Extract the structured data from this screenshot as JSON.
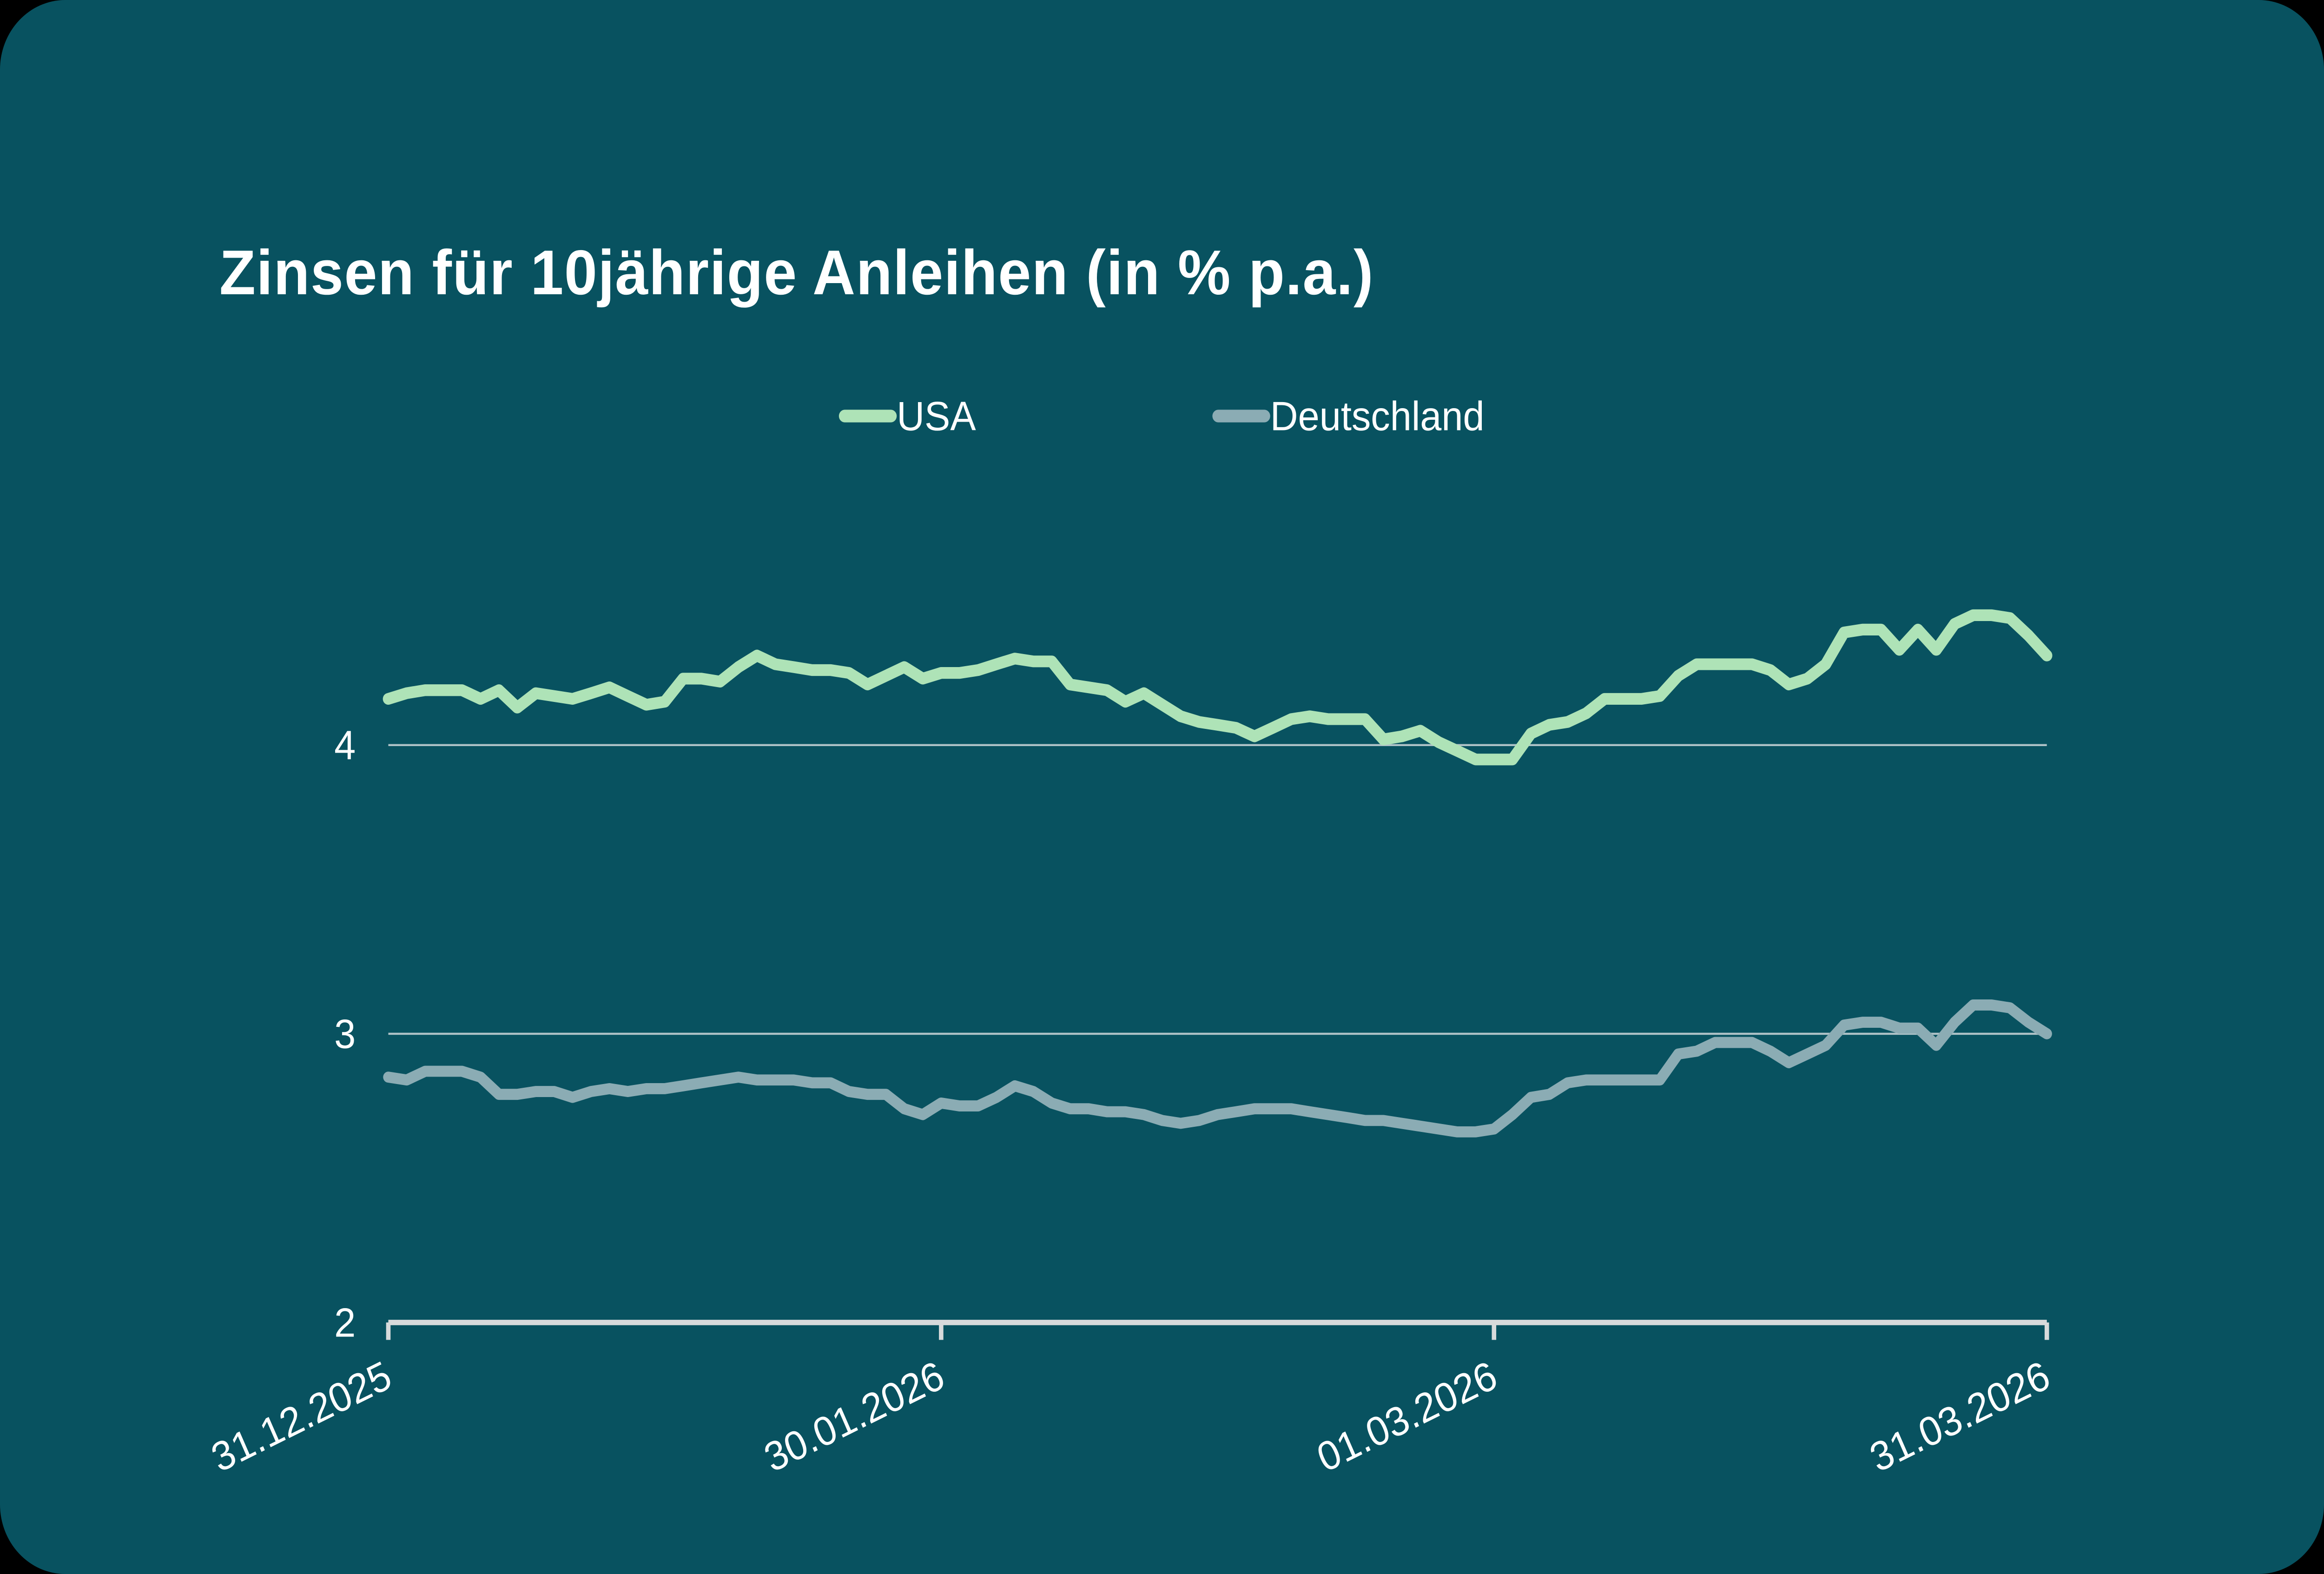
{
  "page": {
    "outer_background": "#000000",
    "panel_background": "#085260",
    "panel_corner_radius": "44",
    "text_color": "#FFFFFF",
    "gridline_color": "#CBD6D9",
    "axis_color": "#D7DADB"
  },
  "header": {
    "title": "Zinsen für 10jährige Anleihen (in % p.a.)"
  },
  "legend": {
    "0": {
      "label": "USA",
      "color": "#AEE3B7"
    },
    "1": {
      "label": "Deutschland",
      "color": "#8BACB4"
    }
  },
  "chart_data": {
    "type": "line",
    "title": "Zinsen für 10jährige Anleihen (in % p.a.)",
    "xlabel": "",
    "ylabel": "",
    "x_start_date": "31.12.2025",
    "x_end_date": "31.03.2026",
    "x_unit": "daily observations, day index 0 = 31.12.2025",
    "xlim_days": [
      0,
      90
    ],
    "ylim": [
      2,
      4.72
    ],
    "grid": "horizontal only",
    "legend_position": "top center",
    "xticks": [
      {
        "day": 0,
        "label": "31.12.2025"
      },
      {
        "day": 30,
        "label": "30.01.2026"
      },
      {
        "day": 60,
        "label": "01.03.2026"
      },
      {
        "day": 90,
        "label": "31.03.2026"
      }
    ],
    "yticks": [
      {
        "value": 2,
        "label": "2"
      },
      {
        "value": 3,
        "label": "3"
      },
      {
        "value": 4,
        "label": "4"
      }
    ],
    "series": [
      {
        "name": "USA",
        "color": "#AEE3B7",
        "stroke_width": 7.4,
        "values": [
          4.16,
          4.18,
          4.19,
          4.19,
          4.19,
          4.16,
          4.19,
          4.13,
          4.18,
          4.17,
          4.16,
          4.18,
          4.2,
          4.17,
          4.14,
          4.15,
          4.23,
          4.23,
          4.22,
          4.27,
          4.31,
          4.28,
          4.27,
          4.26,
          4.26,
          4.25,
          4.21,
          4.24,
          4.27,
          4.23,
          4.25,
          4.25,
          4.26,
          4.28,
          4.3,
          4.29,
          4.29,
          4.21,
          4.2,
          4.19,
          4.15,
          4.18,
          4.14,
          4.1,
          4.08,
          4.07,
          4.06,
          4.03,
          4.06,
          4.09,
          4.1,
          4.09,
          4.09,
          4.09,
          4.02,
          4.03,
          4.05,
          4.01,
          3.98,
          3.95,
          3.95,
          3.95,
          4.04,
          4.07,
          4.08,
          4.11,
          4.16,
          4.16,
          4.16,
          4.17,
          4.24,
          4.28,
          4.28,
          4.28,
          4.28,
          4.26,
          4.21,
          4.23,
          4.28,
          4.39,
          4.4,
          4.4,
          4.33,
          4.4,
          4.33,
          4.42,
          4.45,
          4.45,
          4.44,
          4.38,
          4.31
        ]
      },
      {
        "name": "Deutschland",
        "color": "#8BACB4",
        "stroke_width": 7.0,
        "values": [
          2.85,
          2.84,
          2.87,
          2.87,
          2.87,
          2.85,
          2.79,
          2.79,
          2.8,
          2.8,
          2.78,
          2.8,
          2.81,
          2.8,
          2.81,
          2.81,
          2.82,
          2.83,
          2.84,
          2.85,
          2.84,
          2.84,
          2.84,
          2.83,
          2.83,
          2.8,
          2.79,
          2.79,
          2.74,
          2.72,
          2.76,
          2.75,
          2.75,
          2.78,
          2.82,
          2.8,
          2.76,
          2.74,
          2.74,
          2.73,
          2.73,
          2.72,
          2.7,
          2.69,
          2.7,
          2.72,
          2.73,
          2.74,
          2.74,
          2.74,
          2.73,
          2.72,
          2.71,
          2.7,
          2.7,
          2.69,
          2.68,
          2.67,
          2.66,
          2.66,
          2.67,
          2.72,
          2.78,
          2.79,
          2.83,
          2.84,
          2.84,
          2.84,
          2.84,
          2.84,
          2.93,
          2.94,
          2.97,
          2.97,
          2.97,
          2.94,
          2.9,
          2.93,
          2.96,
          3.03,
          3.04,
          3.04,
          3.02,
          3.02,
          2.96,
          3.04,
          3.1,
          3.1,
          3.09,
          3.04,
          3.0
        ]
      }
    ]
  }
}
